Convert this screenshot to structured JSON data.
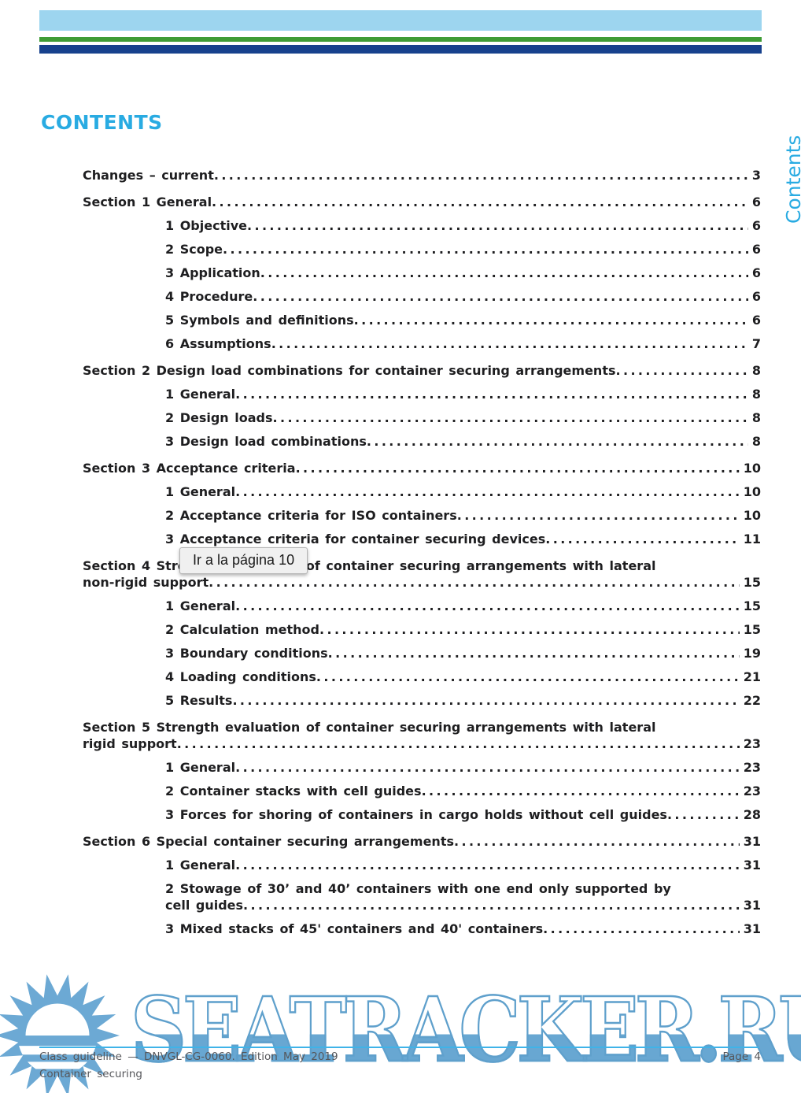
{
  "page": {
    "title": "CONTENTS",
    "side_label": "Contents"
  },
  "colors": {
    "accent_blue": "#29abe2",
    "bar_light_blue": "#9dd5ef",
    "bar_green": "#3f9c35",
    "bar_dark_blue": "#17418d",
    "watermark_blue": "#68a7d2",
    "footer_rule_blue": "#3fb3e8",
    "text_color": "#1e1e20"
  },
  "toc": {
    "entries": [
      {
        "indent": 0,
        "gap": false,
        "lines": [
          "Changes – current"
        ],
        "page": "3"
      },
      {
        "indent": 0,
        "gap": true,
        "lines": [
          "Section 1 General"
        ],
        "page": "6"
      },
      {
        "indent": 1,
        "gap": false,
        "lines": [
          "1 Objective"
        ],
        "page": "6"
      },
      {
        "indent": 1,
        "gap": false,
        "lines": [
          "2 Scope"
        ],
        "page": "6"
      },
      {
        "indent": 1,
        "gap": false,
        "lines": [
          "3 Application"
        ],
        "page": "6"
      },
      {
        "indent": 1,
        "gap": false,
        "lines": [
          "4 Procedure"
        ],
        "page": "6"
      },
      {
        "indent": 1,
        "gap": false,
        "lines": [
          "5 Symbols and definitions"
        ],
        "page": "6"
      },
      {
        "indent": 1,
        "gap": false,
        "lines": [
          "6 Assumptions"
        ],
        "page": "7"
      },
      {
        "indent": 0,
        "gap": true,
        "lines": [
          "Section 2 Design load combinations for container securing arrangements"
        ],
        "page": "8"
      },
      {
        "indent": 1,
        "gap": false,
        "lines": [
          "1 General"
        ],
        "page": "8"
      },
      {
        "indent": 1,
        "gap": false,
        "lines": [
          "2 Design loads"
        ],
        "page": "8"
      },
      {
        "indent": 1,
        "gap": false,
        "lines": [
          "3 Design load combinations"
        ],
        "page": "8"
      },
      {
        "indent": 0,
        "gap": true,
        "lines": [
          "Section 3 Acceptance criteria"
        ],
        "page": "10"
      },
      {
        "indent": 1,
        "gap": false,
        "lines": [
          "1 General"
        ],
        "page": "10"
      },
      {
        "indent": 1,
        "gap": false,
        "lines": [
          "2 Acceptance criteria for ISO containers"
        ],
        "page": "10"
      },
      {
        "indent": 1,
        "gap": false,
        "lines": [
          "3 Acceptance criteria for container securing devices"
        ],
        "page": "11"
      },
      {
        "indent": 0,
        "gap": true,
        "lines": [
          "Section 4 Strength evaluation of container securing arrangements with lateral",
          "non-rigid support"
        ],
        "page": "15"
      },
      {
        "indent": 1,
        "gap": false,
        "lines": [
          "1 General"
        ],
        "page": "15"
      },
      {
        "indent": 1,
        "gap": false,
        "lines": [
          "2 Calculation method"
        ],
        "page": "15"
      },
      {
        "indent": 1,
        "gap": false,
        "lines": [
          "3 Boundary conditions"
        ],
        "page": "19"
      },
      {
        "indent": 1,
        "gap": false,
        "lines": [
          "4 Loading conditions"
        ],
        "page": "21"
      },
      {
        "indent": 1,
        "gap": false,
        "lines": [
          "5 Results"
        ],
        "page": "22"
      },
      {
        "indent": 0,
        "gap": true,
        "lines": [
          "Section 5 Strength evaluation of container securing arrangements with lateral",
          "rigid support"
        ],
        "page": "23"
      },
      {
        "indent": 1,
        "gap": false,
        "lines": [
          "1 General"
        ],
        "page": "23"
      },
      {
        "indent": 1,
        "gap": false,
        "lines": [
          "2 Container stacks with cell guides"
        ],
        "page": "23"
      },
      {
        "indent": 1,
        "gap": false,
        "lines": [
          "3 Forces for shoring of containers in cargo holds without cell guides"
        ],
        "page": "28"
      },
      {
        "indent": 0,
        "gap": true,
        "lines": [
          "Section 6 Special container securing arrangements"
        ],
        "page": "31"
      },
      {
        "indent": 1,
        "gap": false,
        "lines": [
          "1 General"
        ],
        "page": "31"
      },
      {
        "indent": 1,
        "gap": false,
        "lines": [
          "2 Stowage of 30’ and 40’ containers with one end only supported by",
          "cell guides"
        ],
        "page": "31"
      },
      {
        "indent": 1,
        "gap": false,
        "lines": [
          "3 Mixed stacks of 45' containers and 40' containers"
        ],
        "page": "31"
      }
    ]
  },
  "tooltip": {
    "text": "Ir a la página 10"
  },
  "watermark": {
    "text": "SEATRACKER.RU",
    "logo": "sun-logo"
  },
  "footer": {
    "left_line1": "Class guideline — DNVGL-CG-0060. Edition May 2019",
    "left_line2": "Container securing",
    "page_label": "Page 4"
  }
}
